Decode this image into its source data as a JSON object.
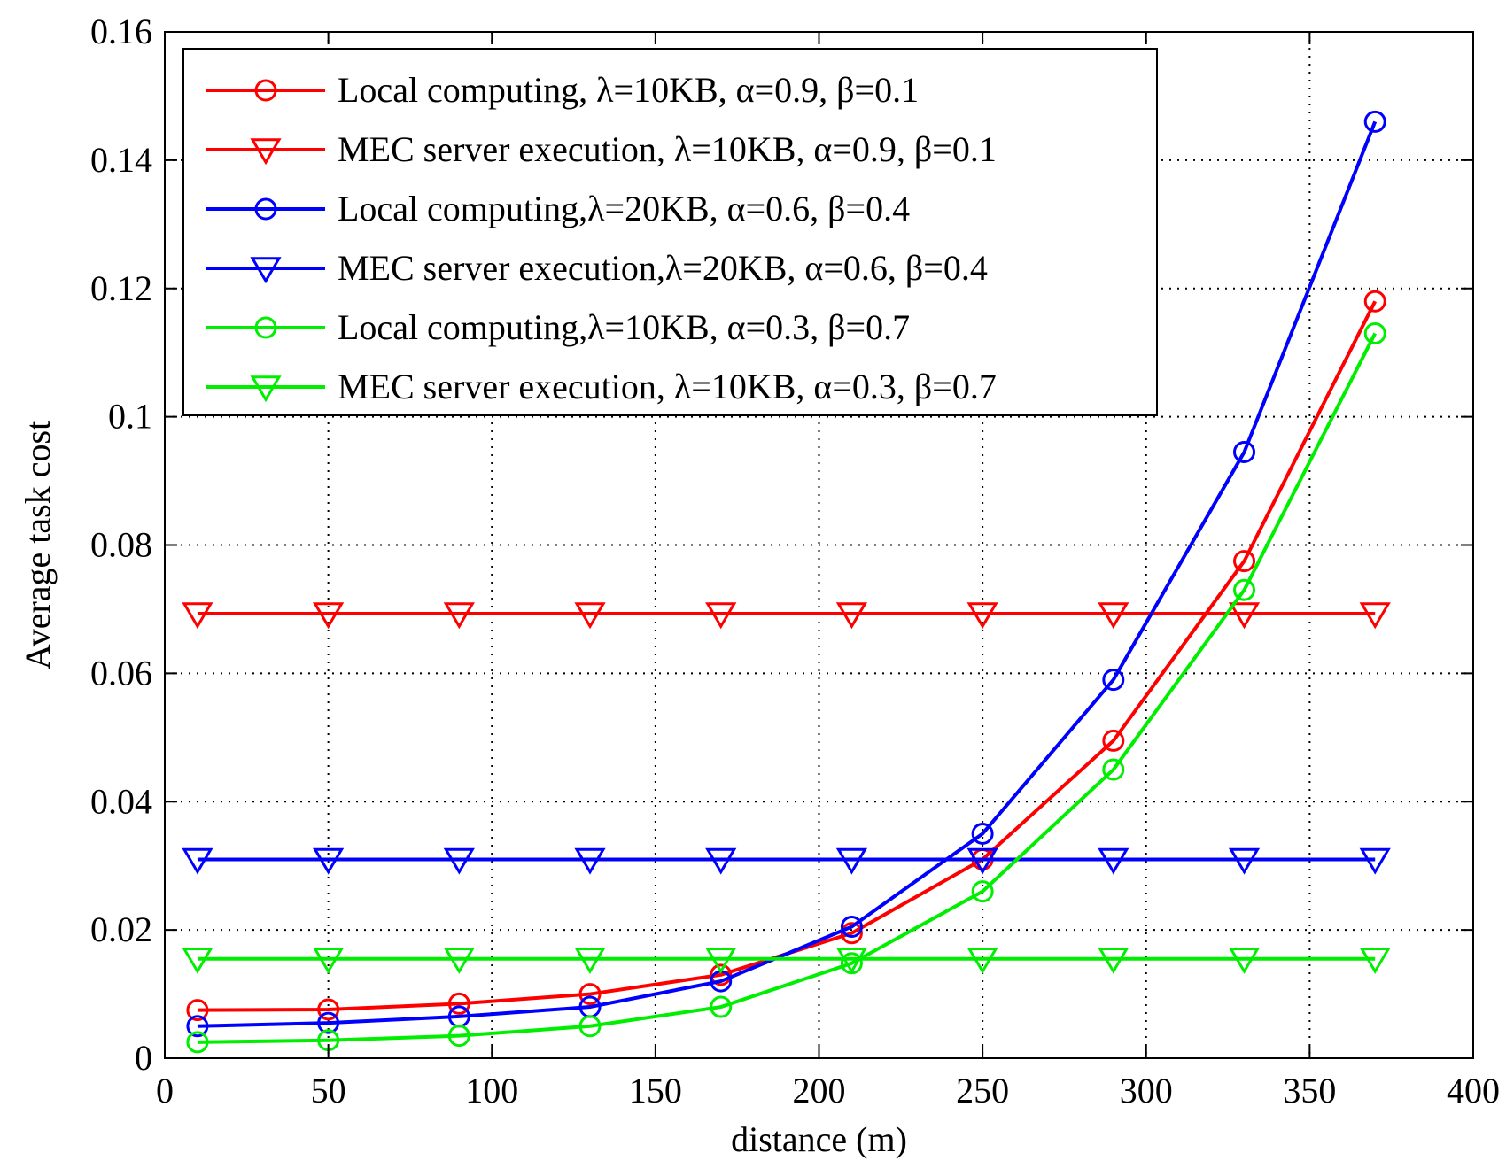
{
  "chart_data": {
    "type": "line",
    "title": "",
    "xlabel": "distance  (m)",
    "ylabel": "Average task cost",
    "xlim": [
      0,
      400
    ],
    "ylim": [
      0,
      0.16
    ],
    "xticks": [
      0,
      50,
      100,
      150,
      200,
      250,
      300,
      350,
      400
    ],
    "yticks": [
      0,
      0.02,
      0.04,
      0.06,
      0.08,
      0.1,
      0.12,
      0.14,
      0.16
    ],
    "xtick_labels": [
      "0",
      "50",
      "100",
      "150",
      "200",
      "250",
      "300",
      "350",
      "400"
    ],
    "ytick_labels": [
      "0",
      "0.02",
      "0.04",
      "0.06",
      "0.08",
      "0.1",
      "0.12",
      "0.14",
      "0.16"
    ],
    "grid": true,
    "legend_position": "top-left",
    "x": [
      10,
      50,
      90,
      130,
      170,
      210,
      250,
      290,
      330,
      370
    ],
    "series": [
      {
        "name": "Local computing, λ=10KB, α=0.9, β=0.1",
        "color": "#ff0000",
        "marker": "circle",
        "values": [
          0.0075,
          0.0076,
          0.0085,
          0.01,
          0.013,
          0.0195,
          0.031,
          0.0495,
          0.0775,
          0.118
        ]
      },
      {
        "name": "MEC server execution, λ=10KB, α=0.9, β=0.1",
        "color": "#ff0000",
        "marker": "triangle-down",
        "values": [
          0.0693,
          0.0693,
          0.0693,
          0.0693,
          0.0693,
          0.0693,
          0.0693,
          0.0693,
          0.0693,
          0.0693
        ]
      },
      {
        "name": "Local computing,λ=20KB, α=0.6, β=0.4",
        "color": "#0000ff",
        "marker": "circle",
        "values": [
          0.005,
          0.0055,
          0.0065,
          0.008,
          0.012,
          0.0205,
          0.035,
          0.059,
          0.0945,
          0.146
        ]
      },
      {
        "name": "MEC server execution,λ=20KB, α=0.6, β=0.4",
        "color": "#0000ff",
        "marker": "triangle-down",
        "values": [
          0.031,
          0.031,
          0.031,
          0.031,
          0.031,
          0.031,
          0.031,
          0.031,
          0.031,
          0.031
        ]
      },
      {
        "name": "Local computing,λ=10KB, α=0.3, β=0.7",
        "color": "#00ee00",
        "marker": "circle",
        "values": [
          0.0025,
          0.0028,
          0.0035,
          0.005,
          0.008,
          0.0148,
          0.026,
          0.045,
          0.073,
          0.113
        ]
      },
      {
        "name": "MEC server execution, λ=10KB, α=0.3, β=0.7",
        "color": "#00ee00",
        "marker": "triangle-down",
        "values": [
          0.0155,
          0.0155,
          0.0155,
          0.0155,
          0.0155,
          0.0155,
          0.0155,
          0.0155,
          0.0155,
          0.0155
        ]
      }
    ]
  }
}
